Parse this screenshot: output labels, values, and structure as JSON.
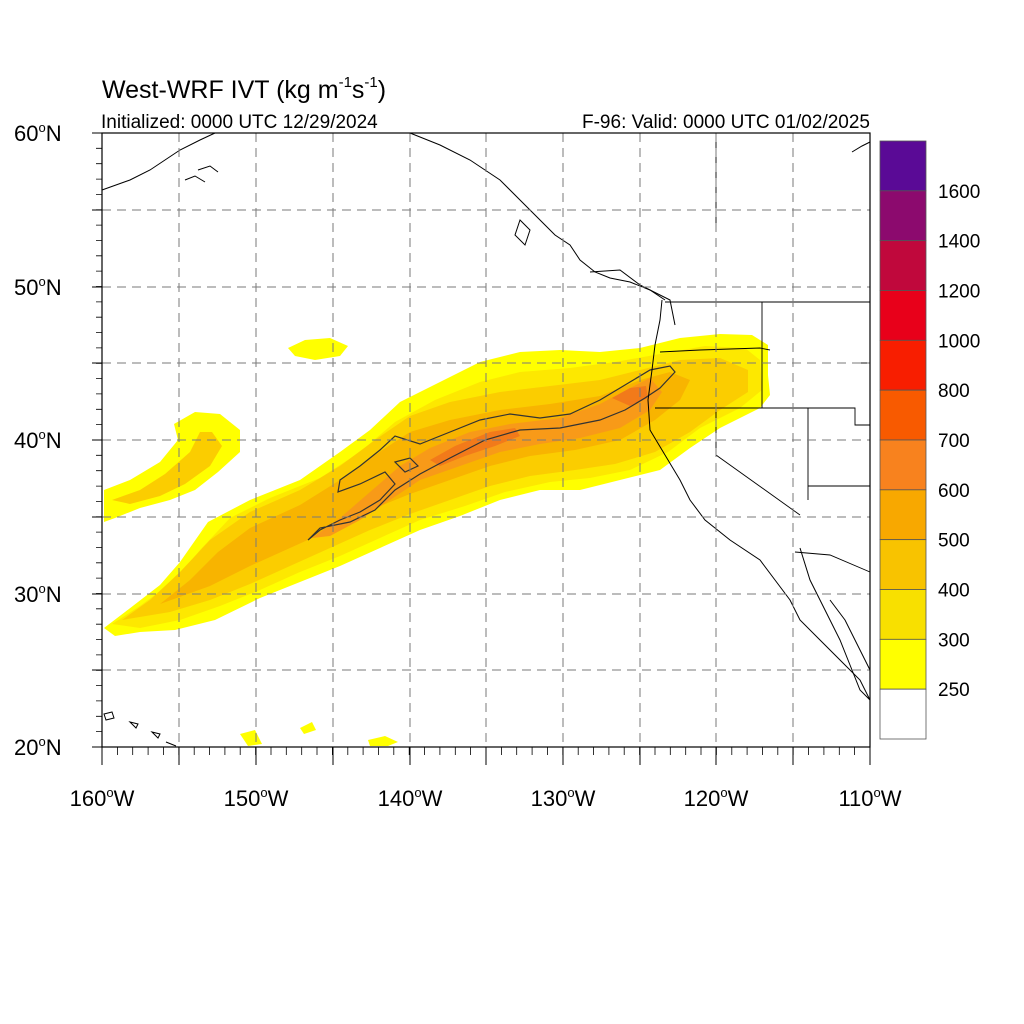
{
  "title": {
    "main": "West-WRF IVT (kg m",
    "unit_sup1": "-1",
    "mid": "s",
    "unit_sup2": "-1",
    "close": ")"
  },
  "subtitle_left": "Initialized: 0000 UTC 12/29/2024",
  "subtitle_right": "F-96: Valid: 0000 UTC 01/02/2025",
  "lat_labels": [
    "60",
    "50",
    "40",
    "30",
    "20"
  ],
  "lat_suffix": "N",
  "lon_labels": [
    "160",
    "150",
    "140",
    "130",
    "120",
    "110"
  ],
  "lon_suffix": "W",
  "degree_symbol": "o",
  "colorbar": {
    "labels": [
      "1600",
      "1400",
      "1200",
      "1000",
      "800",
      "700",
      "600",
      "500",
      "400",
      "300",
      "250"
    ],
    "colors_top_to_bottom": [
      "#5a0a96",
      "#8c0a6e",
      "#c0083c",
      "#e8001a",
      "#f81e00",
      "#f85a00",
      "#f8821e",
      "#f8a800",
      "#f8c300",
      "#f8e000",
      "#ffff00",
      "#ffffff"
    ]
  },
  "colors": {
    "ivt_250": "#ffff00",
    "ivt_300": "#fde800",
    "ivt_400": "#fbcd00",
    "ivt_500": "#f8b400",
    "ivt_600": "#f89a18",
    "ivt_700": "#f27a1a",
    "coast": "#000000",
    "grid": "#888888"
  },
  "map_extent": {
    "lon_west": -160,
    "lon_east": -110,
    "lat_south": 20,
    "lat_north": 60
  }
}
